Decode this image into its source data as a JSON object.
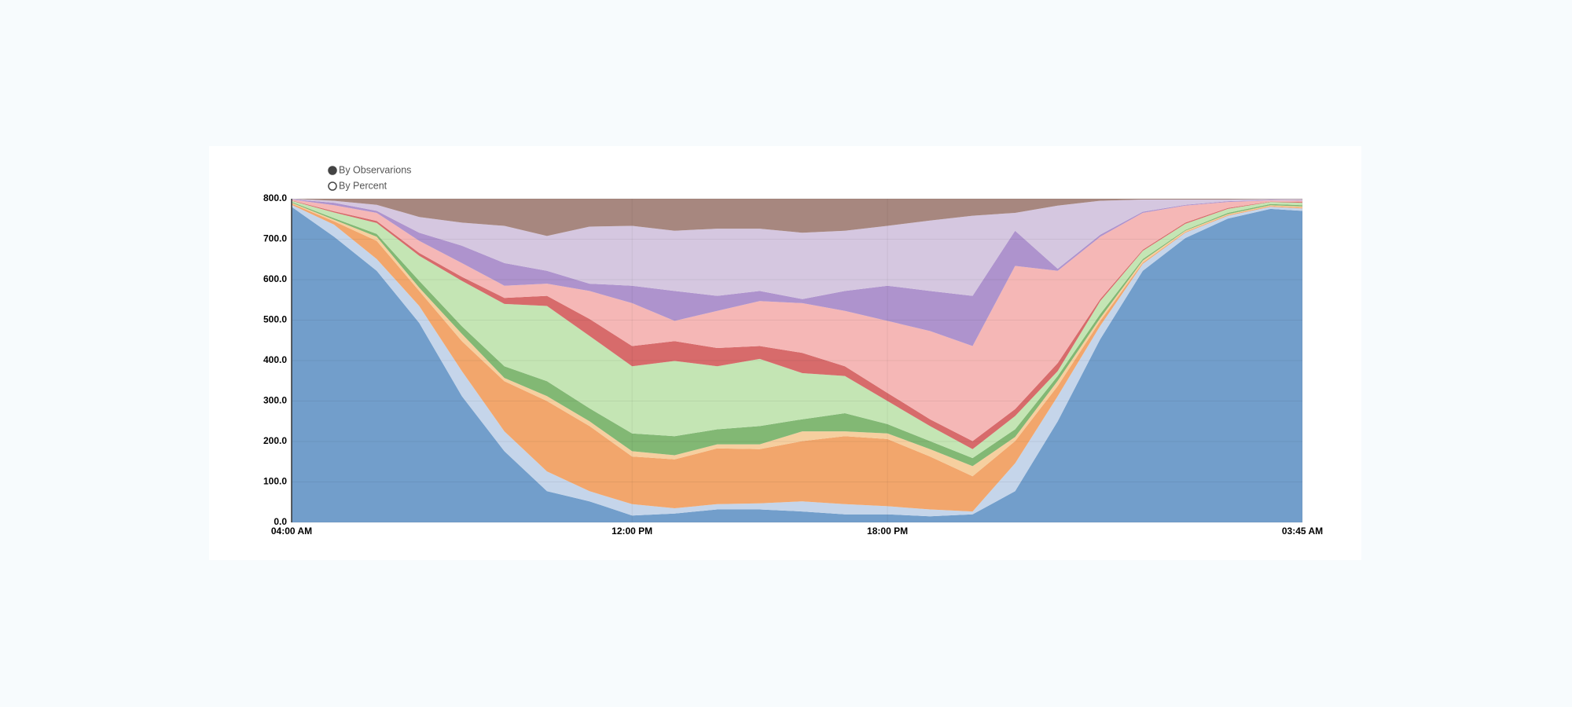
{
  "controls": [
    {
      "label": "By Observarions",
      "selected": true
    },
    {
      "label": "By Percent",
      "selected": false
    }
  ],
  "chart_data": {
    "type": "stacked-area",
    "x": [
      4,
      5,
      6,
      7,
      8,
      9,
      10,
      11,
      12,
      13,
      14,
      15,
      16,
      17,
      18,
      19,
      20,
      21,
      22,
      23,
      24,
      25,
      26,
      27,
      27.75
    ],
    "xlim": [
      4,
      27.75
    ],
    "xticks": [
      {
        "value": 4,
        "label": "04:00 AM"
      },
      {
        "value": 12,
        "label": "12:00 PM"
      },
      {
        "value": 18,
        "label": "18:00 PM"
      },
      {
        "value": 27.75,
        "label": "03:45 AM"
      }
    ],
    "ylim": [
      0,
      800
    ],
    "yticks": [
      {
        "value": 0,
        "label": "0.0"
      },
      {
        "value": 100,
        "label": "100.0"
      },
      {
        "value": 200,
        "label": "200.0"
      },
      {
        "value": 300,
        "label": "300.0"
      },
      {
        "value": 400,
        "label": "400.0"
      },
      {
        "value": 500,
        "label": "500.0"
      },
      {
        "value": 600,
        "label": "600.0"
      },
      {
        "value": 700,
        "label": "700.0"
      },
      {
        "value": 800,
        "label": "800.0"
      }
    ],
    "grid": true,
    "series": [
      {
        "color": "#729ecb",
        "values": [
          780,
          706,
          622,
          493,
          312,
          176,
          77,
          52,
          17,
          22,
          32,
          32,
          27,
          20,
          20,
          15,
          20,
          77,
          250,
          453,
          622,
          703,
          751,
          775,
          770
        ]
      },
      {
        "color": "#c5d5ea",
        "values": [
          5,
          30,
          29,
          42,
          62,
          49,
          49,
          25,
          28,
          13,
          13,
          15,
          25,
          25,
          20,
          17,
          7,
          69,
          62,
          33,
          17,
          13,
          7,
          5,
          6
        ]
      },
      {
        "color": "#f2a66c",
        "values": [
          3,
          8,
          45,
          37,
          74,
          124,
          174,
          161,
          118,
          121,
          138,
          134,
          149,
          168,
          166,
          131,
          87,
          55,
          25,
          12,
          3,
          2,
          2,
          2,
          2
        ]
      },
      {
        "color": "#f6cf9f",
        "values": [
          2,
          4,
          10,
          8,
          18,
          8,
          12,
          12,
          13,
          10,
          10,
          12,
          24,
          12,
          14,
          18,
          25,
          10,
          13,
          7,
          5,
          3,
          2,
          2,
          3
        ]
      },
      {
        "color": "#82b874",
        "values": [
          2,
          4,
          7,
          17,
          19,
          29,
          37,
          32,
          44,
          47,
          37,
          45,
          30,
          45,
          23,
          20,
          20,
          19,
          12,
          10,
          4,
          2,
          3,
          3,
          3
        ]
      },
      {
        "color": "#c4e5b4",
        "values": [
          3,
          14,
          27,
          62,
          112,
          154,
          186,
          179,
          166,
          186,
          156,
          166,
          114,
          92,
          57,
          37,
          22,
          33,
          12,
          32,
          20,
          15,
          10,
          5,
          6
        ]
      },
      {
        "color": "#d76b6b",
        "values": [
          1,
          3,
          5,
          7,
          10,
          15,
          25,
          42,
          50,
          49,
          45,
          32,
          50,
          24,
          20,
          17,
          20,
          17,
          20,
          5,
          3,
          3,
          2,
          1,
          2
        ]
      },
      {
        "color": "#f5b7b6",
        "values": [
          2,
          15,
          20,
          30,
          34,
          30,
          30,
          69,
          106,
          50,
          92,
          111,
          123,
          137,
          178,
          218,
          235,
          354,
          228,
          154,
          91,
          42,
          15,
          3,
          3
        ]
      },
      {
        "color": "#ae93cd",
        "values": [
          1,
          6,
          5,
          20,
          43,
          56,
          32,
          18,
          43,
          74,
          37,
          25,
          10,
          49,
          87,
          99,
          124,
          87,
          5,
          5,
          3,
          2,
          2,
          1,
          1
        ]
      },
      {
        "color": "#d5c7e0",
        "values": [
          1,
          5,
          15,
          39,
          57,
          92,
          86,
          141,
          148,
          149,
          166,
          154,
          164,
          149,
          148,
          174,
          198,
          44,
          156,
          84,
          30,
          13,
          4,
          2,
          3
        ]
      },
      {
        "color": "#a7877f",
        "values": [
          0,
          5,
          15,
          45,
          59,
          67,
          92,
          69,
          67,
          79,
          74,
          74,
          84,
          79,
          67,
          54,
          42,
          35,
          17,
          5,
          2,
          2,
          2,
          1,
          1
        ]
      }
    ]
  }
}
